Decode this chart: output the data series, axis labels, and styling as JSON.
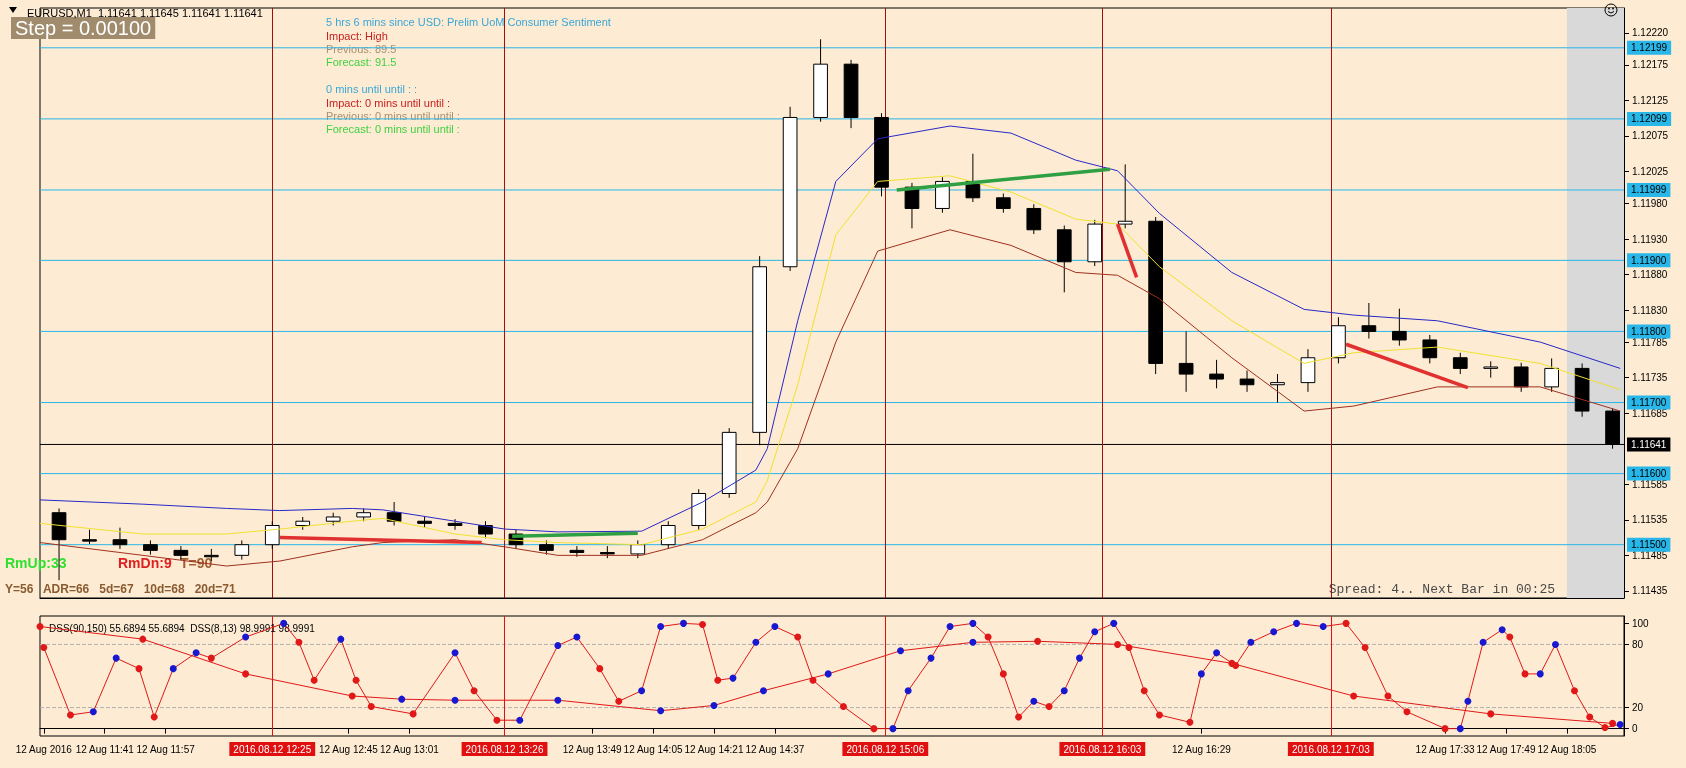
{
  "chart_data": [
    {
      "type": "candlestick",
      "title": "EURUSD,M1  1.11641 1.11645 1.11641 1.11641",
      "x": [
        "2016-08-12T11:29",
        "2016-08-12T11:37",
        "2016-08-12T11:45",
        "2016-08-12T11:53",
        "2016-08-12T12:01",
        "2016-08-12T12:09",
        "2016-08-12T12:17",
        "2016-08-12T12:25",
        "2016-08-12T12:33",
        "2016-08-12T12:41",
        "2016-08-12T12:49",
        "2016-08-12T12:57",
        "2016-08-12T13:05",
        "2016-08-12T13:13",
        "2016-08-12T13:21",
        "2016-08-12T13:29",
        "2016-08-12T13:37",
        "2016-08-12T13:45",
        "2016-08-12T13:53",
        "2016-08-12T14:01",
        "2016-08-12T14:09",
        "2016-08-12T14:17",
        "2016-08-12T14:25",
        "2016-08-12T14:33",
        "2016-08-12T14:41",
        "2016-08-12T14:49",
        "2016-08-12T14:57",
        "2016-08-12T15:05",
        "2016-08-12T15:13",
        "2016-08-12T15:21",
        "2016-08-12T15:29",
        "2016-08-12T15:37",
        "2016-08-12T15:45",
        "2016-08-12T15:53",
        "2016-08-12T16:01",
        "2016-08-12T16:09",
        "2016-08-12T16:17",
        "2016-08-12T16:25",
        "2016-08-12T16:33",
        "2016-08-12T16:41",
        "2016-08-12T16:49",
        "2016-08-12T16:57",
        "2016-08-12T17:05",
        "2016-08-12T17:13",
        "2016-08-12T17:21",
        "2016-08-12T17:29",
        "2016-08-12T17:37",
        "2016-08-12T17:45",
        "2016-08-12T17:53",
        "2016-08-12T18:01",
        "2016-08-12T18:09",
        "2016-08-12T18:17"
      ],
      "ohlc": [
        [
          1.11545,
          1.11551,
          1.1145,
          1.11507
        ],
        [
          1.11507,
          1.11521,
          1.11501,
          1.11505
        ],
        [
          1.11507,
          1.11524,
          1.11494,
          1.115
        ],
        [
          1.115,
          1.11506,
          1.11486,
          1.11492
        ],
        [
          1.11492,
          1.11498,
          1.11479,
          1.11485
        ],
        [
          1.11485,
          1.11494,
          1.11477,
          1.11483
        ],
        [
          1.11485,
          1.11506,
          1.11479,
          1.115
        ],
        [
          1.115,
          1.11533,
          1.11494,
          1.11527
        ],
        [
          1.11527,
          1.11539,
          1.11521,
          1.11533
        ],
        [
          1.11533,
          1.11545,
          1.11527,
          1.11539
        ],
        [
          1.11539,
          1.11551,
          1.11533,
          1.11545
        ],
        [
          1.11545,
          1.1156,
          1.11527,
          1.11533
        ],
        [
          1.11533,
          1.11539,
          1.11524,
          1.1153
        ],
        [
          1.1153,
          1.11536,
          1.11521,
          1.11527
        ],
        [
          1.11527,
          1.11533,
          1.11509,
          1.11515
        ],
        [
          1.11515,
          1.11521,
          1.11494,
          1.115
        ],
        [
          1.115,
          1.11506,
          1.11486,
          1.11492
        ],
        [
          1.11492,
          1.11498,
          1.11483,
          1.11489
        ],
        [
          1.11489,
          1.11498,
          1.11481,
          1.11487
        ],
        [
          1.11487,
          1.11506,
          1.11481,
          1.115
        ],
        [
          1.115,
          1.11533,
          1.11494,
          1.11527
        ],
        [
          1.11527,
          1.11578,
          1.11521,
          1.11572
        ],
        [
          1.11572,
          1.11664,
          1.11566,
          1.11658
        ],
        [
          1.11658,
          1.11906,
          1.1164,
          1.11891
        ],
        [
          1.11891,
          1.12116,
          1.11885,
          1.12101
        ],
        [
          1.12101,
          1.12211,
          1.12095,
          1.12176
        ],
        [
          1.12176,
          1.12182,
          1.12086,
          1.12101
        ],
        [
          1.12101,
          1.12107,
          1.1199,
          1.12003
        ],
        [
          1.12003,
          1.12009,
          1.11945,
          1.11973
        ],
        [
          1.11973,
          1.12017,
          1.11967,
          1.12011
        ],
        [
          1.12011,
          1.1205,
          1.11982,
          1.11988
        ],
        [
          1.11988,
          1.11994,
          1.11967,
          1.11973
        ],
        [
          1.11973,
          1.11979,
          1.11937,
          1.11943
        ],
        [
          1.11943,
          1.11949,
          1.11855,
          1.11898
        ],
        [
          1.11898,
          1.11957,
          1.11892,
          1.11951
        ],
        [
          1.11951,
          1.12035,
          1.11945,
          1.11955
        ],
        [
          1.11955,
          1.11961,
          1.1174,
          1.11755
        ],
        [
          1.11755,
          1.118,
          1.11715,
          1.1174
        ],
        [
          1.1174,
          1.1176,
          1.1172,
          1.11733
        ],
        [
          1.11733,
          1.11745,
          1.11715,
          1.11725
        ],
        [
          1.11725,
          1.1174,
          1.117,
          1.11728
        ],
        [
          1.11728,
          1.11775,
          1.11715,
          1.11763
        ],
        [
          1.11763,
          1.1182,
          1.11755,
          1.11808
        ],
        [
          1.11808,
          1.1184,
          1.1179,
          1.118
        ],
        [
          1.118,
          1.11832,
          1.1178,
          1.11788
        ],
        [
          1.11788,
          1.11795,
          1.11755,
          1.11763
        ],
        [
          1.11763,
          1.1177,
          1.1174,
          1.11748
        ],
        [
          1.11748,
          1.11758,
          1.11735,
          1.1175
        ],
        [
          1.1175,
          1.11756,
          1.11715,
          1.11722
        ],
        [
          1.11722,
          1.11762,
          1.11715,
          1.11748
        ],
        [
          1.11748,
          1.11755,
          1.1168,
          1.11688
        ],
        [
          1.11688,
          1.11692,
          1.11635,
          1.11641
        ]
      ],
      "series": [
        {
          "type": "line",
          "color": "#2828c8",
          "x": [
            "2016-08-12T11:24",
            "2016-08-12T11:51",
            "2016-08-12T12:13",
            "2016-08-12T12:27",
            "2016-08-12T12:46",
            "2016-08-12T12:54",
            "2016-08-12T13:13",
            "2016-08-12T13:26",
            "2016-08-12T13:40",
            "2016-08-12T14:02",
            "2016-08-12T14:18",
            "2016-08-12T14:32",
            "2016-08-12T14:35",
            "2016-08-12T14:43",
            "2016-08-12T14:53",
            "2016-08-12T15:04",
            "2016-08-12T15:23",
            "2016-08-12T15:39",
            "2016-08-12T15:56",
            "2016-08-12T16:07",
            "2016-08-12T16:18",
            "2016-08-12T16:37",
            "2016-08-12T16:56",
            "2016-08-12T17:09",
            "2016-08-12T17:31",
            "2016-08-12T17:58",
            "2016-08-12T18:19"
          ],
          "values": [
            1.11563,
            1.11557,
            1.11551,
            1.11548,
            1.11551,
            1.11549,
            1.11533,
            1.11522,
            1.11518,
            1.11519,
            1.1156,
            1.11605,
            1.11635,
            1.11815,
            1.12011,
            1.12071,
            1.12089,
            1.12079,
            1.12041,
            1.12026,
            1.11966,
            1.11883,
            1.11831,
            1.11823,
            1.11815,
            1.11785,
            1.11748
          ]
        },
        {
          "type": "line",
          "color": "#f0e030",
          "x": [
            "2016-08-12T11:24",
            "2016-08-12T11:51",
            "2016-08-12T12:13",
            "2016-08-12T12:27",
            "2016-08-12T12:46",
            "2016-08-12T12:54",
            "2016-08-12T13:13",
            "2016-08-12T13:26",
            "2016-08-12T13:40",
            "2016-08-12T14:02",
            "2016-08-12T14:18",
            "2016-08-12T14:32",
            "2016-08-12T14:35",
            "2016-08-12T14:43",
            "2016-08-12T14:53",
            "2016-08-12T15:04",
            "2016-08-12T15:23",
            "2016-08-12T15:39",
            "2016-08-12T15:56",
            "2016-08-12T16:07",
            "2016-08-12T16:18",
            "2016-08-12T16:37",
            "2016-08-12T16:56",
            "2016-08-12T17:09",
            "2016-08-12T17:31",
            "2016-08-12T17:58",
            "2016-08-12T18:19"
          ],
          "values": [
            1.1153,
            1.11515,
            1.11515,
            1.11522,
            1.11533,
            1.11537,
            1.11515,
            1.11507,
            1.11503,
            1.115,
            1.11522,
            1.1156,
            1.1159,
            1.11725,
            1.11936,
            1.12011,
            1.12019,
            1.11996,
            1.11958,
            1.11951,
            1.11891,
            1.11815,
            1.11755,
            1.1177,
            1.11778,
            1.11755,
            1.11718
          ]
        },
        {
          "type": "line",
          "color": "#a03020",
          "x": [
            "2016-08-12T11:24",
            "2016-08-12T11:51",
            "2016-08-12T12:13",
            "2016-08-12T12:27",
            "2016-08-12T12:46",
            "2016-08-12T12:54",
            "2016-08-12T13:13",
            "2016-08-12T13:26",
            "2016-08-12T13:40",
            "2016-08-12T14:02",
            "2016-08-12T14:18",
            "2016-08-12T14:32",
            "2016-08-12T14:35",
            "2016-08-12T14:43",
            "2016-08-12T14:53",
            "2016-08-12T15:04",
            "2016-08-12T15:23",
            "2016-08-12T15:39",
            "2016-08-12T15:56",
            "2016-08-12T16:07",
            "2016-08-12T16:18",
            "2016-08-12T16:37",
            "2016-08-12T16:56",
            "2016-08-12T17:09",
            "2016-08-12T17:31",
            "2016-08-12T17:58",
            "2016-08-12T18:19"
          ],
          "values": [
            1.11503,
            1.11485,
            1.1147,
            1.11477,
            1.11497,
            1.11503,
            1.11507,
            1.11497,
            1.11485,
            1.11485,
            1.11507,
            1.11545,
            1.1156,
            1.11635,
            1.11785,
            1.11913,
            1.11943,
            1.11921,
            1.11883,
            1.11879,
            1.11846,
            1.11763,
            1.11688,
            1.11695,
            1.11722,
            1.11722,
            1.11688
          ]
        },
        {
          "type": "line",
          "color": "#2ea043",
          "x": [
            "2016-08-12T13:28",
            "2016-08-12T14:01"
          ],
          "values": [
            1.11512,
            1.11516
          ]
        },
        {
          "type": "line",
          "color": "#2ea043",
          "x": [
            "2016-08-12T15:09",
            "2016-08-12T16:05"
          ],
          "values": [
            1.11999,
            1.12028
          ]
        },
        {
          "type": "line",
          "color": "#e03030",
          "x": [
            "2016-08-12T12:27",
            "2016-08-12T13:20"
          ],
          "values": [
            1.1151,
            1.11503
          ]
        },
        {
          "type": "line",
          "color": "#e03030",
          "x": [
            "2016-08-12T16:07",
            "2016-08-12T16:12"
          ],
          "values": [
            1.11951,
            1.11876
          ]
        },
        {
          "type": "line",
          "color": "#e03030",
          "x": [
            "2016-08-12T17:07",
            "2016-08-12T17:39"
          ],
          "values": [
            1.11782,
            1.11721
          ]
        }
      ],
      "xlim": [
        "2016-08-12T11:24",
        "2016-08-12T18:20"
      ],
      "ylim": [
        1.11425,
        1.12255
      ],
      "yticks": [
        {
          "value": 1.1222,
          "label": "1.12220"
        },
        {
          "value": 1.12175,
          "label": "1.12175"
        },
        {
          "value": 1.12125,
          "label": "1.12125"
        },
        {
          "value": 1.12075,
          "label": "1.12075"
        },
        {
          "value": 1.12025,
          "label": "1.12025"
        },
        {
          "value": 1.1198,
          "label": "1.11980"
        },
        {
          "value": 1.1193,
          "label": "1.11930"
        },
        {
          "value": 1.1188,
          "label": "1.11880"
        },
        {
          "value": 1.1183,
          "label": "1.11830"
        },
        {
          "value": 1.11785,
          "label": "1.11785"
        },
        {
          "value": 1.11735,
          "label": "1.11735"
        },
        {
          "value": 1.11685,
          "label": "1.11685"
        },
        {
          "value": 1.11585,
          "label": "1.11585"
        },
        {
          "value": 1.11535,
          "label": "1.11535"
        },
        {
          "value": 1.11485,
          "label": "1.11485"
        },
        {
          "value": 1.11435,
          "label": "1.11435"
        }
      ],
      "tick_labels": "y",
      "ref_lines": [
        {
          "axis": "y",
          "value": 1.12199,
          "label": "1.12199",
          "color": "#29b6e8"
        },
        {
          "axis": "y",
          "value": 1.12099,
          "label": "1.12099",
          "color": "#29b6e8"
        },
        {
          "axis": "y",
          "value": 1.11999,
          "label": "1.11999",
          "color": "#29b6e8"
        },
        {
          "axis": "y",
          "value": 1.119,
          "label": "1.11900",
          "color": "#29b6e8"
        },
        {
          "axis": "y",
          "value": 1.118,
          "label": "1.11800",
          "color": "#29b6e8"
        },
        {
          "axis": "y",
          "value": 1.117,
          "label": "1.11700",
          "color": "#29b6e8"
        },
        {
          "axis": "y",
          "value": 1.116,
          "label": "1.11600",
          "color": "#29b6e8"
        },
        {
          "axis": "y",
          "value": 1.115,
          "label": "1.11500",
          "color": "#29b6e8"
        },
        {
          "axis": "y",
          "value": 1.11641,
          "label": "1.11641",
          "color": "#000000"
        },
        {
          "axis": "x",
          "value": "2016-08-12T12:25",
          "color": "#a01010"
        },
        {
          "axis": "x",
          "value": "2016-08-12T13:26",
          "color": "#a01010"
        },
        {
          "axis": "x",
          "value": "2016-08-12T15:06",
          "color": "#a01010"
        },
        {
          "axis": "x",
          "value": "2016-08-12T16:03",
          "color": "#a01010"
        },
        {
          "axis": "x",
          "value": "2016-08-12T17:03",
          "color": "#a01010"
        }
      ],
      "bands": [
        {
          "axis": "x",
          "from": "2016-08-12T18:05",
          "to": "2016-08-12T18:20",
          "color": "#d9d9d9"
        }
      ],
      "annotations": [
        "Step = 0.00100",
        "5 hrs 6 mins since USD: Prelim UoM Consumer Sentiment",
        "Impact: High",
        "Previous: 89.5",
        "Forecast: 91.5",
        "0 mins until until : :",
        "Impact: 0 mins until until :",
        "Previous: 0 mins until until :",
        "Forecast: 0 mins until until :",
        "RmUp:33",
        "RmDn:9",
        "T=90",
        "Y=56   ADR=66   5d=67   10d=68   20d=71",
        "Spread: 4.. Next Bar in 00:25"
      ]
    },
    {
      "type": "line",
      "title": "DSS(90,150) 55.6894 55.6894  DSS(8,13) 98.9991 98.9991",
      "marker": "circle",
      "series": [
        {
          "color": "#e01818",
          "x": [
            "2016-08-12T11:24",
            "2016-08-12T11:51",
            "2016-08-12T12:18",
            "2016-08-12T12:46",
            "2016-08-12T12:59",
            "2016-08-12T13:13",
            "2016-08-12T13:40",
            "2016-08-12T14:07",
            "2016-08-12T14:21",
            "2016-08-12T14:34",
            "2016-08-12T14:51",
            "2016-08-12T15:10",
            "2016-08-12T15:29",
            "2016-08-12T15:46",
            "2016-08-12T16:07",
            "2016-08-12T16:37",
            "2016-08-12T17:09",
            "2016-08-12T17:45",
            "2016-08-12T18:17"
          ],
          "values": [
            97,
            85,
            52,
            31,
            28,
            27,
            27,
            17,
            22,
            36,
            52,
            74,
            82,
            83,
            80,
            62,
            31,
            14,
            5
          ],
          "colors": [
            "#e01818",
            "#e01818",
            "#e01818",
            "#e01818",
            "#1818d0",
            "#1818d0",
            "#1818d0",
            "#1818d0",
            "#1818d0",
            "#1818d0",
            "#1818d0",
            "#1818d0",
            "#1818d0",
            "#e01818",
            "#e01818",
            "#e01818",
            "#e01818",
            "#e01818",
            "#e01818"
          ]
        },
        {
          "color": "#e01818",
          "x": [
            "2016-08-12T11:25",
            "2016-08-12T11:32",
            "2016-08-12T11:38",
            "2016-08-12T11:44",
            "2016-08-12T11:50",
            "2016-08-12T11:54",
            "2016-08-12T11:59",
            "2016-08-12T12:05",
            "2016-08-12T12:09",
            "2016-08-12T12:18",
            "2016-08-12T12:28",
            "2016-08-12T12:32",
            "2016-08-12T12:36",
            "2016-08-12T12:43",
            "2016-08-12T12:47",
            "2016-08-12T12:51",
            "2016-08-12T13:02",
            "2016-08-12T13:13",
            "2016-08-12T13:18",
            "2016-08-12T13:24",
            "2016-08-12T13:30",
            "2016-08-12T13:40",
            "2016-08-12T13:45",
            "2016-08-12T13:51",
            "2016-08-12T13:56",
            "2016-08-12T14:02",
            "2016-08-12T14:07",
            "2016-08-12T14:13",
            "2016-08-12T14:18",
            "2016-08-12T14:22",
            "2016-08-12T14:26",
            "2016-08-12T14:32",
            "2016-08-12T14:37",
            "2016-08-12T14:43",
            "2016-08-12T14:47",
            "2016-08-12T14:55",
            "2016-08-12T15:03",
            "2016-08-12T15:08",
            "2016-08-12T15:12",
            "2016-08-12T15:18",
            "2016-08-12T15:23",
            "2016-08-12T15:29",
            "2016-08-12T15:33",
            "2016-08-12T15:37",
            "2016-08-12T15:41",
            "2016-08-12T15:45",
            "2016-08-12T15:49",
            "2016-08-12T15:53",
            "2016-08-12T15:57",
            "2016-08-12T16:01",
            "2016-08-12T16:06",
            "2016-08-12T16:10",
            "2016-08-12T16:14",
            "2016-08-12T16:18",
            "2016-08-12T16:26",
            "2016-08-12T16:29",
            "2016-08-12T16:33",
            "2016-08-12T16:38",
            "2016-08-12T16:42",
            "2016-08-12T16:48",
            "2016-08-12T16:54",
            "2016-08-12T17:01",
            "2016-08-12T17:07",
            "2016-08-12T17:12",
            "2016-08-12T17:18",
            "2016-08-12T17:23",
            "2016-08-12T17:33",
            "2016-08-12T17:37",
            "2016-08-12T17:39",
            "2016-08-12T17:43",
            "2016-08-12T17:48",
            "2016-08-12T17:50",
            "2016-08-12T17:54",
            "2016-08-12T17:58",
            "2016-08-12T18:02",
            "2016-08-12T18:07",
            "2016-08-12T18:11",
            "2016-08-12T18:15",
            "2016-08-12T18:19"
          ],
          "values": [
            77,
            13,
            16,
            67,
            57,
            11,
            57,
            72,
            67,
            87,
            100,
            82,
            46,
            85,
            46,
            21,
            14,
            72,
            36,
            8,
            8,
            79,
            87,
            57,
            26,
            36,
            97,
            100,
            99,
            46,
            48,
            82,
            97,
            87,
            46,
            21,
            0,
            0,
            36,
            67,
            97,
            100,
            87,
            52,
            11,
            26,
            21,
            36,
            67,
            92,
            100,
            77,
            36,
            13,
            6,
            52,
            72,
            60,
            82,
            92,
            100,
            97,
            100,
            77,
            31,
            16,
            0,
            0,
            26,
            82,
            94,
            87,
            52,
            52,
            80,
            36,
            11,
            1,
            4
          ],
          "colors": [
            "#e01818",
            "#e01818",
            "#1818d0",
            "#1818d0",
            "#e01818",
            "#e01818",
            "#1818d0",
            "#1818d0",
            "#e01818",
            "#1818d0",
            "#1818d0",
            "#e01818",
            "#e01818",
            "#1818d0",
            "#e01818",
            "#e01818",
            "#e01818",
            "#1818d0",
            "#e01818",
            "#e01818",
            "#1818d0",
            "#1818d0",
            "#1818d0",
            "#e01818",
            "#e01818",
            "#1818d0",
            "#1818d0",
            "#1818d0",
            "#e01818",
            "#e01818",
            "#1818d0",
            "#1818d0",
            "#1818d0",
            "#e01818",
            "#e01818",
            "#e01818",
            "#e01818",
            "#1818d0",
            "#1818d0",
            "#1818d0",
            "#1818d0",
            "#1818d0",
            "#e01818",
            "#e01818",
            "#e01818",
            "#1818d0",
            "#e01818",
            "#1818d0",
            "#1818d0",
            "#1818d0",
            "#1818d0",
            "#e01818",
            "#e01818",
            "#e01818",
            "#e01818",
            "#1818d0",
            "#1818d0",
            "#e01818",
            "#1818d0",
            "#1818d0",
            "#1818d0",
            "#1818d0",
            "#e01818",
            "#e01818",
            "#e01818",
            "#e01818",
            "#e01818",
            "#1818d0",
            "#1818d0",
            "#1818d0",
            "#1818d0",
            "#e01818",
            "#e01818",
            "#1818d0",
            "#1818d0",
            "#e01818",
            "#e01818",
            "#e01818",
            "#1818d0"
          ]
        }
      ],
      "xlim": [
        "2016-08-12T11:24",
        "2016-08-12T18:20"
      ],
      "xticks": [
        {
          "value": "2016-08-12T11:25",
          "label": "12 Aug 2016"
        },
        {
          "value": "2016-08-12T11:41",
          "label": "12 Aug 11:41"
        },
        {
          "value": "2016-08-12T11:57",
          "label": "12 Aug 11:57"
        },
        {
          "value": "2016-08-12T12:45",
          "label": "12 Aug 12:45"
        },
        {
          "value": "2016-08-12T13:01",
          "label": "12 Aug 13:01"
        },
        {
          "value": "2016-08-12T13:49",
          "label": "12 Aug 13:49"
        },
        {
          "value": "2016-08-12T14:05",
          "label": "12 Aug 14:05"
        },
        {
          "value": "2016-08-12T14:21",
          "label": "12 Aug 14:21"
        },
        {
          "value": "2016-08-12T14:37",
          "label": "12 Aug 14:37"
        },
        {
          "value": "2016-08-12T16:29",
          "label": "12 Aug 16:29"
        },
        {
          "value": "2016-08-12T17:33",
          "label": "12 Aug 17:33"
        },
        {
          "value": "2016-08-12T17:49",
          "label": "12 Aug 17:49"
        },
        {
          "value": "2016-08-12T18:05",
          "label": "12 Aug 18:05"
        }
      ],
      "ylim": [
        -7,
        107
      ],
      "yticks": [
        0,
        20,
        80,
        100
      ],
      "ref_lines": [
        {
          "axis": "x",
          "value": "2016-08-12T12:25",
          "label": "2016.08.12 12:25",
          "color": "#e01010"
        },
        {
          "axis": "x",
          "value": "2016-08-12T13:26",
          "label": "2016.08.12 13:26",
          "color": "#e01010"
        },
        {
          "axis": "x",
          "value": "2016-08-12T15:06",
          "label": "2016.08.12 15:06",
          "color": "#e01010"
        },
        {
          "axis": "x",
          "value": "2016-08-12T16:03",
          "label": "2016.08.12 16:03",
          "color": "#e01010"
        },
        {
          "axis": "x",
          "value": "2016-08-12T17:03",
          "label": "2016.08.12 17:03",
          "color": "#e01010"
        },
        {
          "axis": "y",
          "value": 80,
          "color": "#b0b0b0",
          "line_style": "dashed"
        },
        {
          "axis": "y",
          "value": 20,
          "color": "#b0b0b0",
          "line_style": "dashed"
        }
      ]
    }
  ]
}
